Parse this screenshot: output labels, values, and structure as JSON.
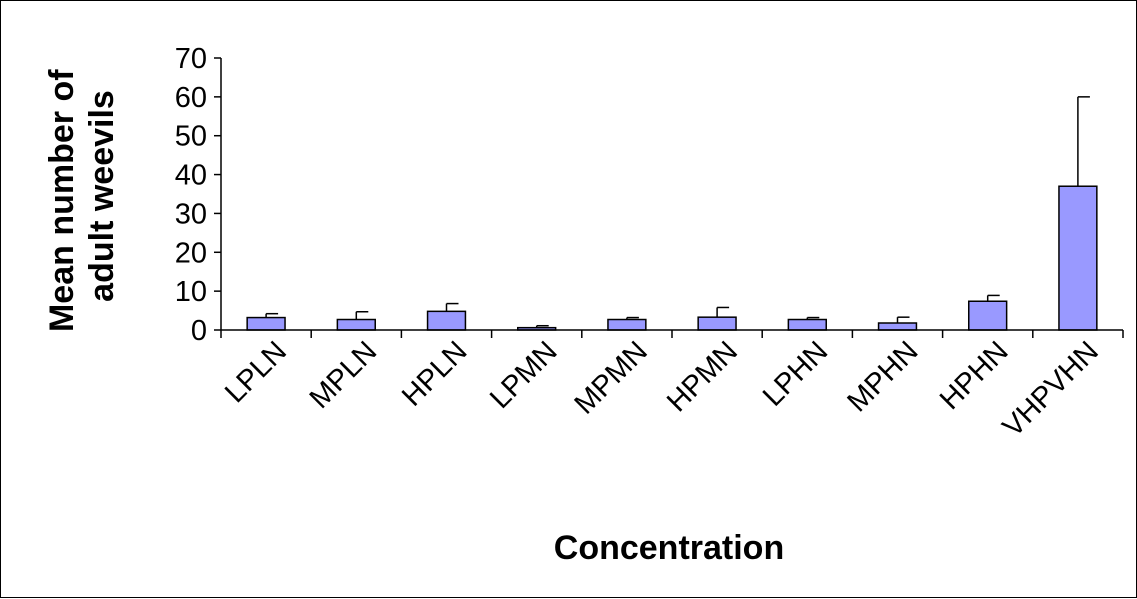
{
  "chart_data": {
    "type": "bar",
    "categories": [
      "LPLN",
      "MPLN",
      "HPLN",
      "LPMN",
      "MPMN",
      "HPMN",
      "LPHN",
      "MPHN",
      "HPHN",
      "VHPVHN"
    ],
    "values": [
      3.2,
      2.7,
      4.8,
      0.6,
      2.7,
      3.3,
      2.7,
      1.8,
      7.4,
      37.0
    ],
    "error_plus": [
      1.0,
      2.0,
      2.0,
      0.5,
      0.5,
      2.5,
      0.5,
      1.5,
      1.5,
      23.0
    ],
    "xlabel": "Concentration",
    "ylabel_lines": [
      "Mean number of",
      "adult weevils"
    ],
    "ylim": [
      0,
      70
    ],
    "yticks": [
      "0",
      "10",
      "20",
      "30",
      "40",
      "50",
      "60",
      "70"
    ],
    "bar_color": "#9999ff",
    "grid": false,
    "legend": "none"
  }
}
